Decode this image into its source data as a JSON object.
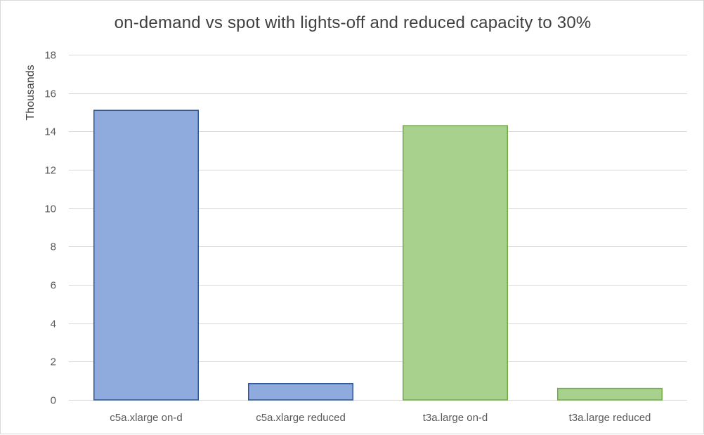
{
  "chart_data": {
    "type": "bar",
    "title": "on-demand vs spot with lights-off and reduced capacity to 30%",
    "xlabel": "",
    "ylabel": "Thousands",
    "ylim": [
      0,
      18
    ],
    "yticks": [
      0,
      2,
      4,
      6,
      8,
      10,
      12,
      14,
      16,
      18
    ],
    "grid": true,
    "legend": "none",
    "categories": [
      "c5a.xlarge on-d",
      "c5a.xlarge reduced",
      "t3a.large on-d",
      "t3a.large reduced"
    ],
    "values": [
      15.1,
      0.85,
      14.3,
      0.6
    ],
    "bar_colors": [
      "#8FAADC",
      "#8FAADC",
      "#A9D18E",
      "#A9D18E"
    ],
    "bar_borders": [
      "#2F5597",
      "#2F5597",
      "#70AD47",
      "#70AD47"
    ]
  }
}
